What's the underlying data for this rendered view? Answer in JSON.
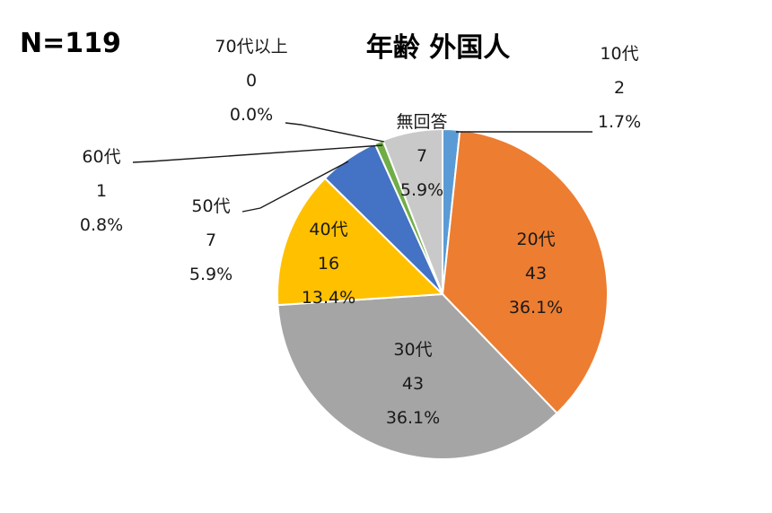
{
  "chart_data": {
    "type": "pie",
    "title": "年齢 外国人",
    "sample_size_label": "N=119",
    "total": 119,
    "slices": [
      {
        "category": "10代",
        "count": 2,
        "percent": "1.7%",
        "color": "#5B9BD5",
        "label_lines": [
          "10代",
          "2",
          "1.7%"
        ]
      },
      {
        "category": "20代",
        "count": 43,
        "percent": "36.1%",
        "color": "#ED7D31",
        "label_lines": [
          "20代",
          "43",
          "36.1%"
        ]
      },
      {
        "category": "30代",
        "count": 43,
        "percent": "36.1%",
        "color": "#A5A5A5",
        "label_lines": [
          "30代",
          "43",
          "36.1%"
        ]
      },
      {
        "category": "40代",
        "count": 16,
        "percent": "13.4%",
        "color": "#FFC000",
        "label_lines": [
          "40代",
          "16",
          "13.4%"
        ]
      },
      {
        "category": "50代",
        "count": 7,
        "percent": "5.9%",
        "color": "#4472C4",
        "label_lines": [
          "50代",
          "7",
          "5.9%"
        ]
      },
      {
        "category": "60代",
        "count": 1,
        "percent": "0.8%",
        "color": "#70AD47",
        "label_lines": [
          "60代",
          "1",
          "0.8%"
        ]
      },
      {
        "category": "70代以上",
        "count": 0,
        "percent": "0.0%",
        "color": "#264478",
        "label_lines": [
          "70代以上",
          "0",
          "0.0%"
        ]
      },
      {
        "category": "無回答",
        "count": 7,
        "percent": "5.9%",
        "color": "#C9C9C9",
        "label_lines": [
          "無回答",
          "7",
          "5.9%"
        ]
      }
    ]
  }
}
